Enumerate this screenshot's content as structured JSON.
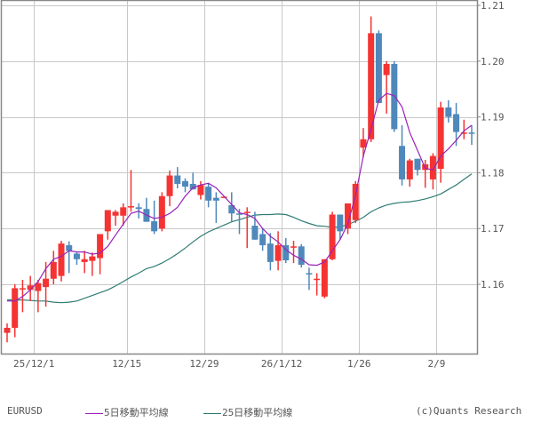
{
  "chart_data": {
    "type": "candlestick",
    "title": "",
    "symbol": "EURUSD",
    "xlabel": "",
    "ylabel": "",
    "ylim": [
      1.149,
      1.212
    ],
    "y_ticks": [
      1.16,
      1.17,
      1.18,
      1.19,
      1.2,
      1.21
    ],
    "y_tick_labels": [
      "1.16",
      "1.17",
      "1.18",
      "1.19",
      "1.20",
      "1.21"
    ],
    "x_tick_labels": [
      {
        "label": "25/12/1",
        "index": 3
      },
      {
        "label": "12/15",
        "index": 15
      },
      {
        "label": "12/29",
        "index": 25
      },
      {
        "label": "26/1/12",
        "index": 35
      },
      {
        "label": "1/26",
        "index": 45
      },
      {
        "label": "2/9",
        "index": 55
      }
    ],
    "grid": true,
    "legend_position": "bottom",
    "up_color": "#f53333",
    "down_color": "#4f88bb",
    "candles": [
      {
        "o": 1.1513,
        "h": 1.153,
        "l": 1.1496,
        "c": 1.1522
      },
      {
        "o": 1.1522,
        "h": 1.16,
        "l": 1.1505,
        "c": 1.1593
      },
      {
        "o": 1.1593,
        "h": 1.1608,
        "l": 1.155,
        "c": 1.1593
      },
      {
        "o": 1.159,
        "h": 1.1615,
        "l": 1.157,
        "c": 1.1598
      },
      {
        "o": 1.1588,
        "h": 1.1608,
        "l": 1.155,
        "c": 1.1602
      },
      {
        "o": 1.1595,
        "h": 1.164,
        "l": 1.156,
        "c": 1.161
      },
      {
        "o": 1.161,
        "h": 1.166,
        "l": 1.16,
        "c": 1.164
      },
      {
        "o": 1.1615,
        "h": 1.1678,
        "l": 1.1605,
        "c": 1.1673
      },
      {
        "o": 1.167,
        "h": 1.1677,
        "l": 1.162,
        "c": 1.166
      },
      {
        "o": 1.1655,
        "h": 1.1658,
        "l": 1.1635,
        "c": 1.1645
      },
      {
        "o": 1.164,
        "h": 1.166,
        "l": 1.162,
        "c": 1.1645
      },
      {
        "o": 1.1642,
        "h": 1.1657,
        "l": 1.1615,
        "c": 1.165
      },
      {
        "o": 1.1647,
        "h": 1.169,
        "l": 1.1618,
        "c": 1.169
      },
      {
        "o": 1.1695,
        "h": 1.1732,
        "l": 1.168,
        "c": 1.1733
      },
      {
        "o": 1.1723,
        "h": 1.1733,
        "l": 1.1705,
        "c": 1.173
      },
      {
        "o": 1.1723,
        "h": 1.1745,
        "l": 1.1705,
        "c": 1.1738
      },
      {
        "o": 1.1738,
        "h": 1.1805,
        "l": 1.173,
        "c": 1.174
      },
      {
        "o": 1.1738,
        "h": 1.1745,
        "l": 1.1718,
        "c": 1.1735
      },
      {
        "o": 1.1735,
        "h": 1.1755,
        "l": 1.1715,
        "c": 1.1712
      },
      {
        "o": 1.1713,
        "h": 1.175,
        "l": 1.169,
        "c": 1.1695
      },
      {
        "o": 1.17,
        "h": 1.1765,
        "l": 1.1695,
        "c": 1.1758
      },
      {
        "o": 1.1758,
        "h": 1.1804,
        "l": 1.174,
        "c": 1.1795
      },
      {
        "o": 1.1795,
        "h": 1.181,
        "l": 1.1772,
        "c": 1.178
      },
      {
        "o": 1.1785,
        "h": 1.179,
        "l": 1.1765,
        "c": 1.1775
      },
      {
        "o": 1.178,
        "h": 1.18,
        "l": 1.177,
        "c": 1.177
      },
      {
        "o": 1.176,
        "h": 1.1785,
        "l": 1.1752,
        "c": 1.1778
      },
      {
        "o": 1.1775,
        "h": 1.178,
        "l": 1.1738,
        "c": 1.175
      },
      {
        "o": 1.1755,
        "h": 1.1765,
        "l": 1.171,
        "c": 1.175
      },
      {
        "o": 1.1755,
        "h": 1.1757,
        "l": 1.1757,
        "c": 1.1757
      },
      {
        "o": 1.1742,
        "h": 1.1765,
        "l": 1.1713,
        "c": 1.1727
      },
      {
        "o": 1.1727,
        "h": 1.1735,
        "l": 1.169,
        "c": 1.1725
      },
      {
        "o": 1.1728,
        "h": 1.1738,
        "l": 1.1665,
        "c": 1.173
      },
      {
        "o": 1.1705,
        "h": 1.173,
        "l": 1.168,
        "c": 1.168
      },
      {
        "o": 1.169,
        "h": 1.17,
        "l": 1.166,
        "c": 1.167
      },
      {
        "o": 1.1673,
        "h": 1.1692,
        "l": 1.1625,
        "c": 1.164
      },
      {
        "o": 1.1642,
        "h": 1.1695,
        "l": 1.1625,
        "c": 1.167
      },
      {
        "o": 1.167,
        "h": 1.1683,
        "l": 1.1638,
        "c": 1.1643
      },
      {
        "o": 1.1667,
        "h": 1.1678,
        "l": 1.1638,
        "c": 1.1668
      },
      {
        "o": 1.1668,
        "h": 1.1672,
        "l": 1.163,
        "c": 1.1635
      },
      {
        "o": 1.162,
        "h": 1.163,
        "l": 1.159,
        "c": 1.1618
      },
      {
        "o": 1.1608,
        "h": 1.162,
        "l": 1.158,
        "c": 1.161
      },
      {
        "o": 1.1578,
        "h": 1.1645,
        "l": 1.1575,
        "c": 1.1645
      },
      {
        "o": 1.1645,
        "h": 1.173,
        "l": 1.1643,
        "c": 1.1725
      },
      {
        "o": 1.1725,
        "h": 1.171,
        "l": 1.168,
        "c": 1.1695
      },
      {
        "o": 1.17,
        "h": 1.1745,
        "l": 1.169,
        "c": 1.1745
      },
      {
        "o": 1.1715,
        "h": 1.1785,
        "l": 1.171,
        "c": 1.178
      },
      {
        "o": 1.1845,
        "h": 1.188,
        "l": 1.1828,
        "c": 1.186
      },
      {
        "o": 1.186,
        "h": 1.208,
        "l": 1.1855,
        "c": 1.205
      },
      {
        "o": 1.205,
        "h": 1.2055,
        "l": 1.1925,
        "c": 1.1925
      },
      {
        "o": 1.1975,
        "h": 1.2,
        "l": 1.1906,
        "c": 1.1995
      },
      {
        "o": 1.1995,
        "h": 1.2,
        "l": 1.1873,
        "c": 1.1878
      },
      {
        "o": 1.1848,
        "h": 1.1885,
        "l": 1.1777,
        "c": 1.1788
      },
      {
        "o": 1.1788,
        "h": 1.1825,
        "l": 1.1775,
        "c": 1.1822
      },
      {
        "o": 1.1825,
        "h": 1.1825,
        "l": 1.1795,
        "c": 1.1805
      },
      {
        "o": 1.1805,
        "h": 1.1823,
        "l": 1.1773,
        "c": 1.1815
      },
      {
        "o": 1.1788,
        "h": 1.1835,
        "l": 1.177,
        "c": 1.183
      },
      {
        "o": 1.1807,
        "h": 1.1927,
        "l": 1.1782,
        "c": 1.1917
      },
      {
        "o": 1.1917,
        "h": 1.193,
        "l": 1.189,
        "c": 1.19
      },
      {
        "o": 1.1905,
        "h": 1.1925,
        "l": 1.1848,
        "c": 1.1873
      },
      {
        "o": 1.187,
        "h": 1.1895,
        "l": 1.186,
        "c": 1.1872
      },
      {
        "o": 1.1872,
        "h": 1.1885,
        "l": 1.185,
        "c": 1.187
      }
    ],
    "series": [
      {
        "name": "5日移動平均線",
        "color": "#9a22b8",
        "values": [
          1.157,
          1.157,
          1.1578,
          1.159,
          1.1605,
          1.1628,
          1.1645,
          1.165,
          1.166,
          1.1658,
          1.1658,
          1.1654,
          1.1656,
          1.1668,
          1.1688,
          1.1708,
          1.1727,
          1.1731,
          1.1724,
          1.1718,
          1.172,
          1.1727,
          1.1738,
          1.1758,
          1.1773,
          1.1778,
          1.1781,
          1.1773,
          1.1758,
          1.1743,
          1.1728,
          1.1725,
          1.1718,
          1.17,
          1.1686,
          1.1676,
          1.1662,
          1.1652,
          1.1645,
          1.1635,
          1.1634,
          1.164,
          1.166,
          1.168,
          1.1708,
          1.176,
          1.183,
          1.1878,
          1.193,
          1.1942,
          1.1938,
          1.1918,
          1.1872,
          1.184,
          1.1808,
          1.1805,
          1.183,
          1.1843,
          1.1858,
          1.1875,
          1.1885
        ]
      },
      {
        "name": "25日移動平均線",
        "color": "#2f7c74",
        "values": [
          1.1572,
          1.1572,
          1.1572,
          1.1571,
          1.157,
          1.157,
          1.1568,
          1.1567,
          1.1568,
          1.157,
          1.1575,
          1.158,
          1.1585,
          1.159,
          1.1597,
          1.1605,
          1.1613,
          1.162,
          1.1628,
          1.1632,
          1.1638,
          1.1646,
          1.1655,
          1.1665,
          1.1676,
          1.1686,
          1.1694,
          1.17,
          1.1706,
          1.1712,
          1.1716,
          1.172,
          1.1724,
          1.1725,
          1.1725,
          1.1726,
          1.1725,
          1.172,
          1.1714,
          1.1709,
          1.1705,
          1.1704,
          1.1702,
          1.1703,
          1.1707,
          1.1713,
          1.172,
          1.173,
          1.1737,
          1.1742,
          1.1745,
          1.1747,
          1.1748,
          1.175,
          1.1753,
          1.1757,
          1.1762,
          1.177,
          1.1778,
          1.1788,
          1.1798
        ]
      }
    ]
  },
  "footer": {
    "symbol": "EURUSD",
    "legend_ma5": "5日移動平均線",
    "legend_ma25": "25日移動平均線",
    "credit": "(c)Quants Research"
  },
  "colors": {
    "frame": "#888888",
    "grid": "#c8c8c8",
    "up": "#f53333",
    "down": "#4f88bb",
    "ma5": "#9a22b8",
    "ma25": "#2f7c74"
  }
}
